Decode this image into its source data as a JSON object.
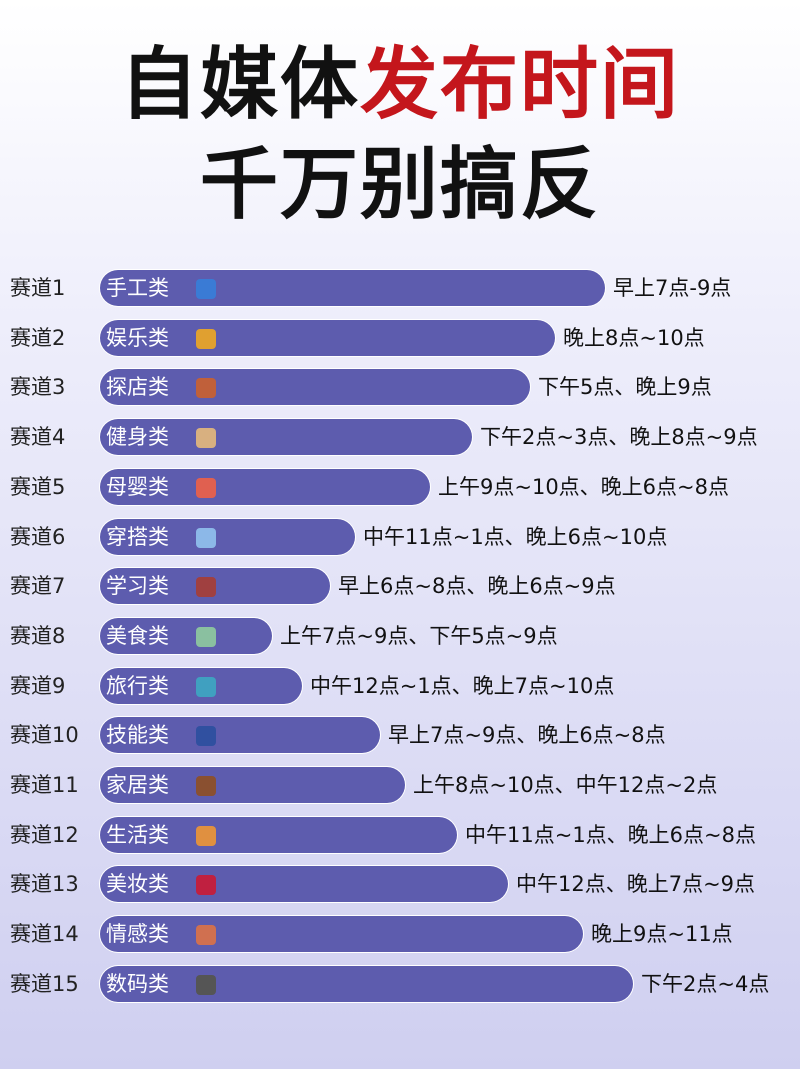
{
  "header": {
    "title_black": "自媒体",
    "title_red": "发布时间",
    "subtitle": "千万别搞反"
  },
  "rows": [
    {
      "label": "赛道1",
      "category": "手工类",
      "time": "早上7点-9点"
    },
    {
      "label": "赛道2",
      "category": "娱乐类",
      "time": "晚上8点~10点"
    },
    {
      "label": "赛道3",
      "category": "探店类",
      "time": "下午5点、晚上9点"
    },
    {
      "label": "赛道4",
      "category": "健身类",
      "time": "下午2点~3点、晚上8点~9点"
    },
    {
      "label": "赛道5",
      "category": "母婴类",
      "time": "上午9点~10点、晚上6点~8点"
    },
    {
      "label": "赛道6",
      "category": "穿搭类",
      "time": "中午11点~1点、晚上6点~10点"
    },
    {
      "label": "赛道7",
      "category": "学习类",
      "time": "早上6点~8点、晚上6点~9点"
    },
    {
      "label": "赛道8",
      "category": "美食类",
      "time": "上午7点~9点、下午5点~9点"
    },
    {
      "label": "赛道9",
      "category": "旅行类",
      "time": "中午12点~1点、晚上7点~10点"
    },
    {
      "label": "赛道10",
      "category": "技能类",
      "time": "早上7点~9点、晚上6点~8点"
    },
    {
      "label": "赛道11",
      "category": "家居类",
      "time": "上午8点~10点、中午12点~2点"
    },
    {
      "label": "赛道12",
      "category": "生活类",
      "time": "中午11点~1点、晚上6点~8点"
    },
    {
      "label": "赛道13",
      "category": "美妆类",
      "time": "中午12点、晚上7点~9点"
    },
    {
      "label": "赛道14",
      "category": "情感类",
      "time": "晚上9点~11点"
    },
    {
      "label": "赛道15",
      "category": "数码类",
      "time": "下午2点~4点"
    }
  ]
}
